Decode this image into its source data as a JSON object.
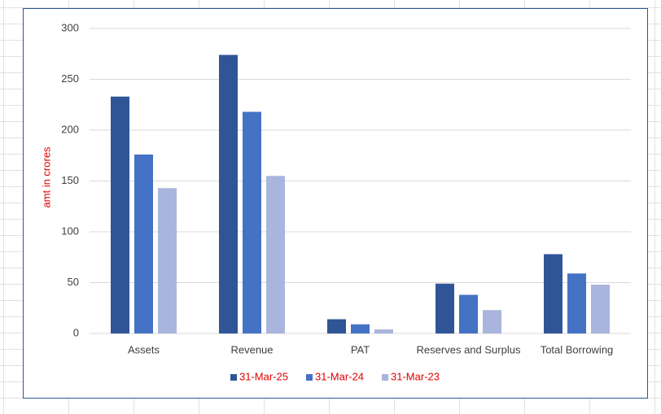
{
  "chart_data": {
    "type": "bar",
    "y_label": "amt in crores",
    "categories": [
      "Assets",
      "Revenue",
      "PAT",
      "Reserves and Surplus",
      "Total Borrowing"
    ],
    "series": [
      {
        "name": "31-Mar-25",
        "color": "#2f5597",
        "values": [
          233,
          274,
          14,
          49,
          78
        ]
      },
      {
        "name": "31-Mar-24",
        "color": "#4472c4",
        "values": [
          176,
          218,
          9,
          38,
          59
        ]
      },
      {
        "name": "31-Mar-23",
        "color": "#a9b5dc",
        "values": [
          143,
          155,
          4,
          23,
          48
        ]
      }
    ],
    "ylim": [
      0,
      300
    ],
    "yticks": [
      0,
      50,
      100,
      150,
      200,
      250,
      300
    ],
    "grid": true,
    "legend": "bottom"
  }
}
